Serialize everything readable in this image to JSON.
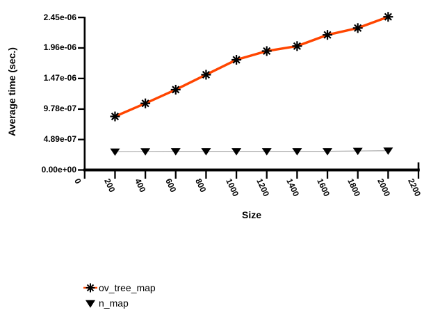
{
  "chart_data": {
    "type": "line",
    "xlabel": "Size",
    "ylabel": "Average time (sec.)",
    "x": [
      200,
      400,
      600,
      800,
      1000,
      1200,
      1400,
      1600,
      1800,
      2000
    ],
    "series": [
      {
        "name": "ov_tree_map",
        "line_color": "#ff4500",
        "line_width": 3.5,
        "marker": "asterisk",
        "marker_color": "#000000",
        "values": [
          8.6e-07,
          1.07e-06,
          1.29e-06,
          1.53e-06,
          1.77e-06,
          1.91e-06,
          1.99e-06,
          2.17e-06,
          2.28e-06,
          2.46e-06
        ]
      },
      {
        "name": "n_map",
        "line_color": "#a8a8a8",
        "line_width": 1.2,
        "marker": "triangle-down",
        "marker_color": "#000000",
        "values": [
          2.95e-07,
          2.98e-07,
          3e-07,
          3e-07,
          3e-07,
          3e-07,
          3e-07,
          3e-07,
          3.05e-07,
          3.1e-07
        ]
      }
    ],
    "xlim": [
      0,
      2200
    ],
    "ylim": [
      0,
      2.45e-06
    ],
    "x_ticks": [
      "0",
      "200",
      "400",
      "600",
      "800",
      "1000",
      "1200",
      "1400",
      "1600",
      "1800",
      "2000",
      "2200"
    ],
    "y_ticks": [
      {
        "label": "0.00e+00",
        "value": 0
      },
      {
        "label": "4.89e-07",
        "value": 4.89e-07
      },
      {
        "label": "9.78e-07",
        "value": 9.78e-07
      },
      {
        "label": "1.47e-06",
        "value": 1.47e-06
      },
      {
        "label": "1.96e-06",
        "value": 1.96e-06
      },
      {
        "label": "2.45e-06",
        "value": 2.45e-06
      }
    ],
    "grid": false,
    "legend_position": "bottom-left",
    "axis_color": "#000000",
    "background": "#ffffff"
  }
}
